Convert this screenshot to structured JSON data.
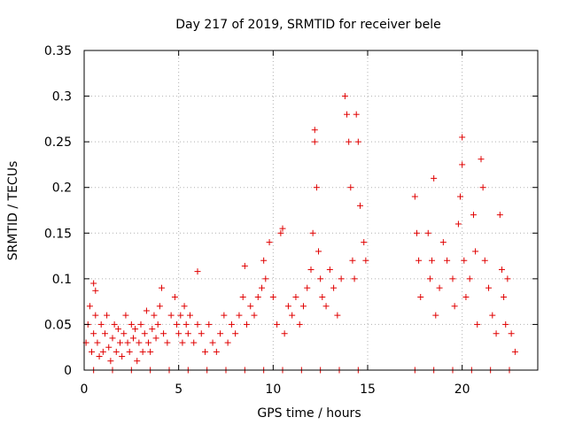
{
  "chart_data": {
    "type": "scatter",
    "title": "Day 217 of 2019, SRMTID for receiver bele",
    "xlabel": "GPS time / hours",
    "ylabel": "SRMTID / TECUs",
    "xlim": [
      0,
      24
    ],
    "ylim": [
      0,
      0.35
    ],
    "xticks": [
      0,
      5,
      10,
      15,
      20
    ],
    "xtick_labels": [
      "0",
      "5",
      "10",
      "15",
      "20"
    ],
    "yticks": [
      0,
      0.05,
      0.1,
      0.15,
      0.2,
      0.25,
      0.3,
      0.35
    ],
    "ytick_labels": [
      "0",
      "0.05",
      "0.1",
      "0.15",
      "0.2",
      "0.25",
      "0.3",
      "0.35"
    ],
    "grid": true,
    "marker": "+",
    "color": "#e00000",
    "series": [
      {
        "name": "SRMTID",
        "points": [
          [
            0.1,
            0.03
          ],
          [
            0.2,
            0.05
          ],
          [
            0.3,
            0.07
          ],
          [
            0.4,
            0.02
          ],
          [
            0.5,
            0.095
          ],
          [
            0.5,
            0.04
          ],
          [
            0.6,
            0.087
          ],
          [
            0.6,
            0.06
          ],
          [
            0.7,
            0.03
          ],
          [
            0.8,
            0.015
          ],
          [
            0.9,
            0.05
          ],
          [
            1.0,
            0.02
          ],
          [
            1.1,
            0.04
          ],
          [
            1.2,
            0.06
          ],
          [
            1.3,
            0.025
          ],
          [
            1.4,
            0.01
          ],
          [
            1.5,
            0.035
          ],
          [
            1.6,
            0.05
          ],
          [
            1.7,
            0.02
          ],
          [
            1.8,
            0.045
          ],
          [
            1.9,
            0.03
          ],
          [
            2.0,
            0.015
          ],
          [
            2.1,
            0.04
          ],
          [
            2.2,
            0.06
          ],
          [
            2.3,
            0.03
          ],
          [
            2.4,
            0.02
          ],
          [
            2.5,
            0.05
          ],
          [
            2.6,
            0.035
          ],
          [
            2.7,
            0.045
          ],
          [
            2.8,
            0.01
          ],
          [
            2.9,
            0.03
          ],
          [
            3.0,
            0.05
          ],
          [
            3.1,
            0.02
          ],
          [
            3.2,
            0.04
          ],
          [
            3.3,
            0.065
          ],
          [
            3.4,
            0.03
          ],
          [
            3.5,
            0.02
          ],
          [
            3.6,
            0.045
          ],
          [
            3.7,
            0.06
          ],
          [
            3.8,
            0.035
          ],
          [
            3.9,
            0.05
          ],
          [
            4.0,
            0.07
          ],
          [
            4.1,
            0.09
          ],
          [
            4.2,
            0.04
          ],
          [
            4.4,
            0.03
          ],
          [
            4.6,
            0.06
          ],
          [
            4.8,
            0.08
          ],
          [
            4.9,
            0.05
          ],
          [
            5.0,
            0.04
          ],
          [
            5.1,
            0.06
          ],
          [
            5.2,
            0.03
          ],
          [
            5.3,
            0.07
          ],
          [
            5.4,
            0.05
          ],
          [
            5.5,
            0.04
          ],
          [
            5.6,
            0.06
          ],
          [
            5.8,
            0.03
          ],
          [
            6.0,
            0.05
          ],
          [
            6.0,
            0.108
          ],
          [
            6.2,
            0.04
          ],
          [
            6.4,
            0.02
          ],
          [
            6.6,
            0.05
          ],
          [
            6.8,
            0.03
          ],
          [
            7.0,
            0.02
          ],
          [
            7.2,
            0.04
          ],
          [
            7.4,
            0.06
          ],
          [
            7.6,
            0.03
          ],
          [
            7.8,
            0.05
          ],
          [
            8.0,
            0.04
          ],
          [
            8.2,
            0.06
          ],
          [
            8.4,
            0.08
          ],
          [
            8.5,
            0.114
          ],
          [
            8.6,
            0.05
          ],
          [
            8.8,
            0.07
          ],
          [
            9.0,
            0.06
          ],
          [
            9.2,
            0.08
          ],
          [
            9.4,
            0.09
          ],
          [
            9.5,
            0.12
          ],
          [
            9.6,
            0.1
          ],
          [
            9.8,
            0.14
          ],
          [
            10.0,
            0.08
          ],
          [
            10.2,
            0.05
          ],
          [
            10.4,
            0.15
          ],
          [
            10.5,
            0.155
          ],
          [
            10.6,
            0.04
          ],
          [
            10.8,
            0.07
          ],
          [
            11.0,
            0.06
          ],
          [
            11.2,
            0.08
          ],
          [
            11.4,
            0.05
          ],
          [
            11.6,
            0.07
          ],
          [
            11.8,
            0.09
          ],
          [
            12.0,
            0.11
          ],
          [
            12.1,
            0.15
          ],
          [
            12.2,
            0.263
          ],
          [
            12.2,
            0.25
          ],
          [
            12.3,
            0.2
          ],
          [
            12.4,
            0.13
          ],
          [
            12.5,
            0.1
          ],
          [
            12.6,
            0.08
          ],
          [
            12.8,
            0.07
          ],
          [
            13.0,
            0.11
          ],
          [
            13.2,
            0.09
          ],
          [
            13.4,
            0.06
          ],
          [
            13.6,
            0.1
          ],
          [
            13.8,
            0.3
          ],
          [
            13.9,
            0.28
          ],
          [
            14.0,
            0.25
          ],
          [
            14.1,
            0.2
          ],
          [
            14.2,
            0.12
          ],
          [
            14.3,
            0.1
          ],
          [
            14.4,
            0.28
          ],
          [
            14.5,
            0.25
          ],
          [
            14.6,
            0.18
          ],
          [
            14.8,
            0.14
          ],
          [
            14.9,
            0.12
          ],
          [
            17.5,
            0.19
          ],
          [
            17.6,
            0.15
          ],
          [
            17.7,
            0.12
          ],
          [
            17.8,
            0.08
          ],
          [
            18.2,
            0.15
          ],
          [
            18.3,
            0.1
          ],
          [
            18.4,
            0.12
          ],
          [
            18.5,
            0.21
          ],
          [
            18.6,
            0.06
          ],
          [
            18.8,
            0.09
          ],
          [
            19.0,
            0.14
          ],
          [
            19.2,
            0.12
          ],
          [
            19.5,
            0.1
          ],
          [
            19.6,
            0.07
          ],
          [
            19.8,
            0.16
          ],
          [
            19.9,
            0.19
          ],
          [
            20.0,
            0.255
          ],
          [
            20.0,
            0.225
          ],
          [
            20.1,
            0.12
          ],
          [
            20.2,
            0.08
          ],
          [
            20.4,
            0.1
          ],
          [
            20.6,
            0.17
          ],
          [
            20.7,
            0.13
          ],
          [
            20.8,
            0.05
          ],
          [
            21.0,
            0.231
          ],
          [
            21.1,
            0.2
          ],
          [
            21.2,
            0.12
          ],
          [
            21.4,
            0.09
          ],
          [
            21.6,
            0.06
          ],
          [
            21.8,
            0.04
          ],
          [
            22.0,
            0.17
          ],
          [
            22.1,
            0.11
          ],
          [
            22.2,
            0.08
          ],
          [
            22.3,
            0.05
          ],
          [
            22.4,
            0.1
          ],
          [
            22.6,
            0.04
          ],
          [
            22.8,
            0.02
          ],
          [
            0.5,
            0
          ],
          [
            1.5,
            0
          ],
          [
            2.5,
            0
          ],
          [
            3.5,
            0
          ],
          [
            4.5,
            0
          ],
          [
            5.5,
            0
          ],
          [
            6.5,
            0
          ],
          [
            7.5,
            0
          ],
          [
            8.5,
            0
          ],
          [
            9.5,
            0
          ],
          [
            10.5,
            0
          ],
          [
            11.5,
            0
          ],
          [
            12.5,
            0
          ],
          [
            13.5,
            0
          ],
          [
            14.5,
            0
          ],
          [
            17.5,
            0
          ],
          [
            18.5,
            0
          ],
          [
            19.5,
            0
          ],
          [
            20.5,
            0
          ],
          [
            21.5,
            0
          ],
          [
            22.5,
            0
          ]
        ]
      }
    ]
  }
}
